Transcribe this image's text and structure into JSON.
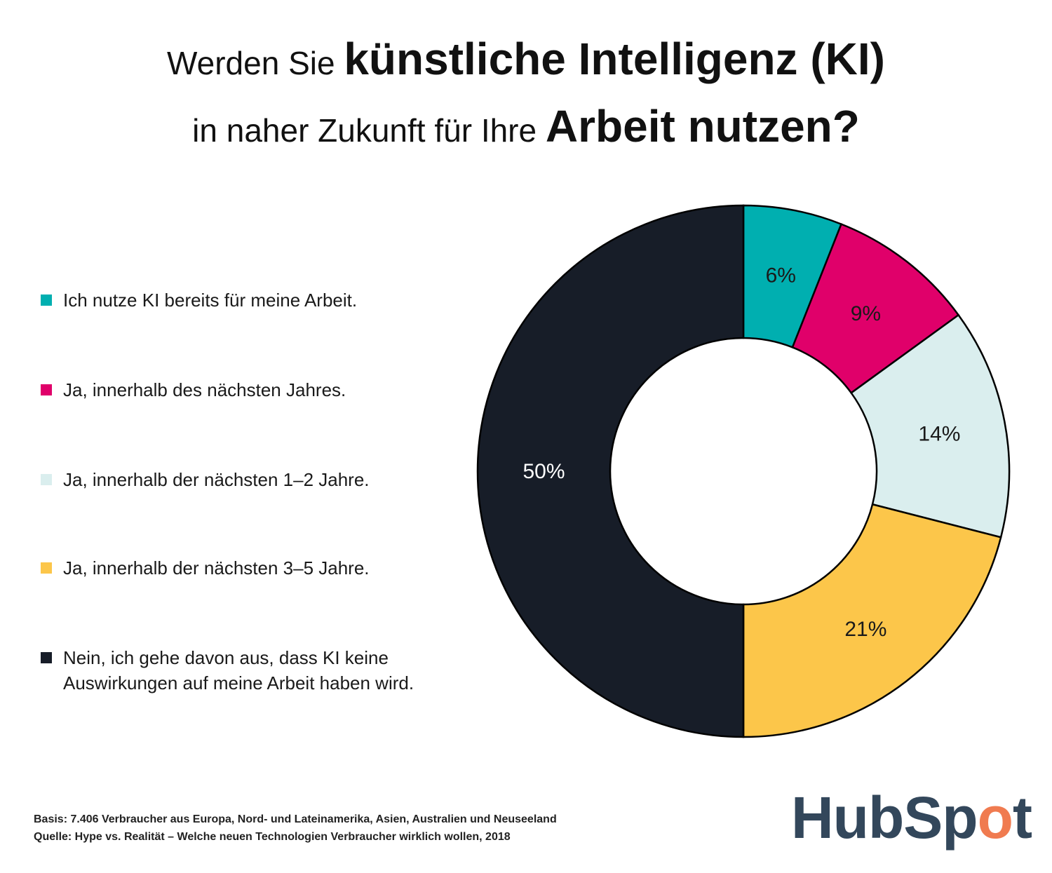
{
  "title": {
    "line1_regular": "Werden Sie ",
    "line1_bold": "künstliche Intelligenz (KI)",
    "line2_regular": "in naher Zukunft für Ihre ",
    "line2_bold": "Arbeit nutzen?"
  },
  "chart_data": {
    "type": "pie",
    "donut": true,
    "start": "top, clockwise",
    "legend_position": "left",
    "slices": [
      {
        "label": "Ich nutze KI bereits für meine Arbeit.",
        "value": 6,
        "data_label": "6%",
        "color": "#00afb0",
        "label_color": "#1a1a1a"
      },
      {
        "label": "Ja, innerhalb des nächsten Jahres.",
        "value": 9,
        "data_label": "9%",
        "color": "#e0006a",
        "label_color": "#1a1a1a"
      },
      {
        "label": "Ja, innerhalb der nächsten 1–2 Jahre.",
        "value": 14,
        "data_label": "14%",
        "color": "#daeeee",
        "label_color": "#1a1a1a"
      },
      {
        "label": "Ja, innerhalb der nächsten 3–5 Jahre.",
        "value": 21,
        "data_label": "21%",
        "color": "#fcc64a",
        "label_color": "#1a1a1a"
      },
      {
        "label": "Nein, ich gehe davon aus, dass KI keine Auswirkungen auf meine Arbeit haben wird.",
        "value": 50,
        "data_label": "50%",
        "color": "#171d28",
        "label_color": "#ffffff"
      }
    ]
  },
  "footer": {
    "basis": "Basis: 7.406 Verbraucher aus Europa, Nord- und Lateinamerika, Asien, Australien und Neuseeland",
    "source": "Quelle: Hype vs. Realität – Welche neuen Technologien Verbraucher wirklich wollen, 2018"
  },
  "logo": {
    "text": "HubSpot",
    "color": "#33475b",
    "accent": "#f07b50"
  }
}
